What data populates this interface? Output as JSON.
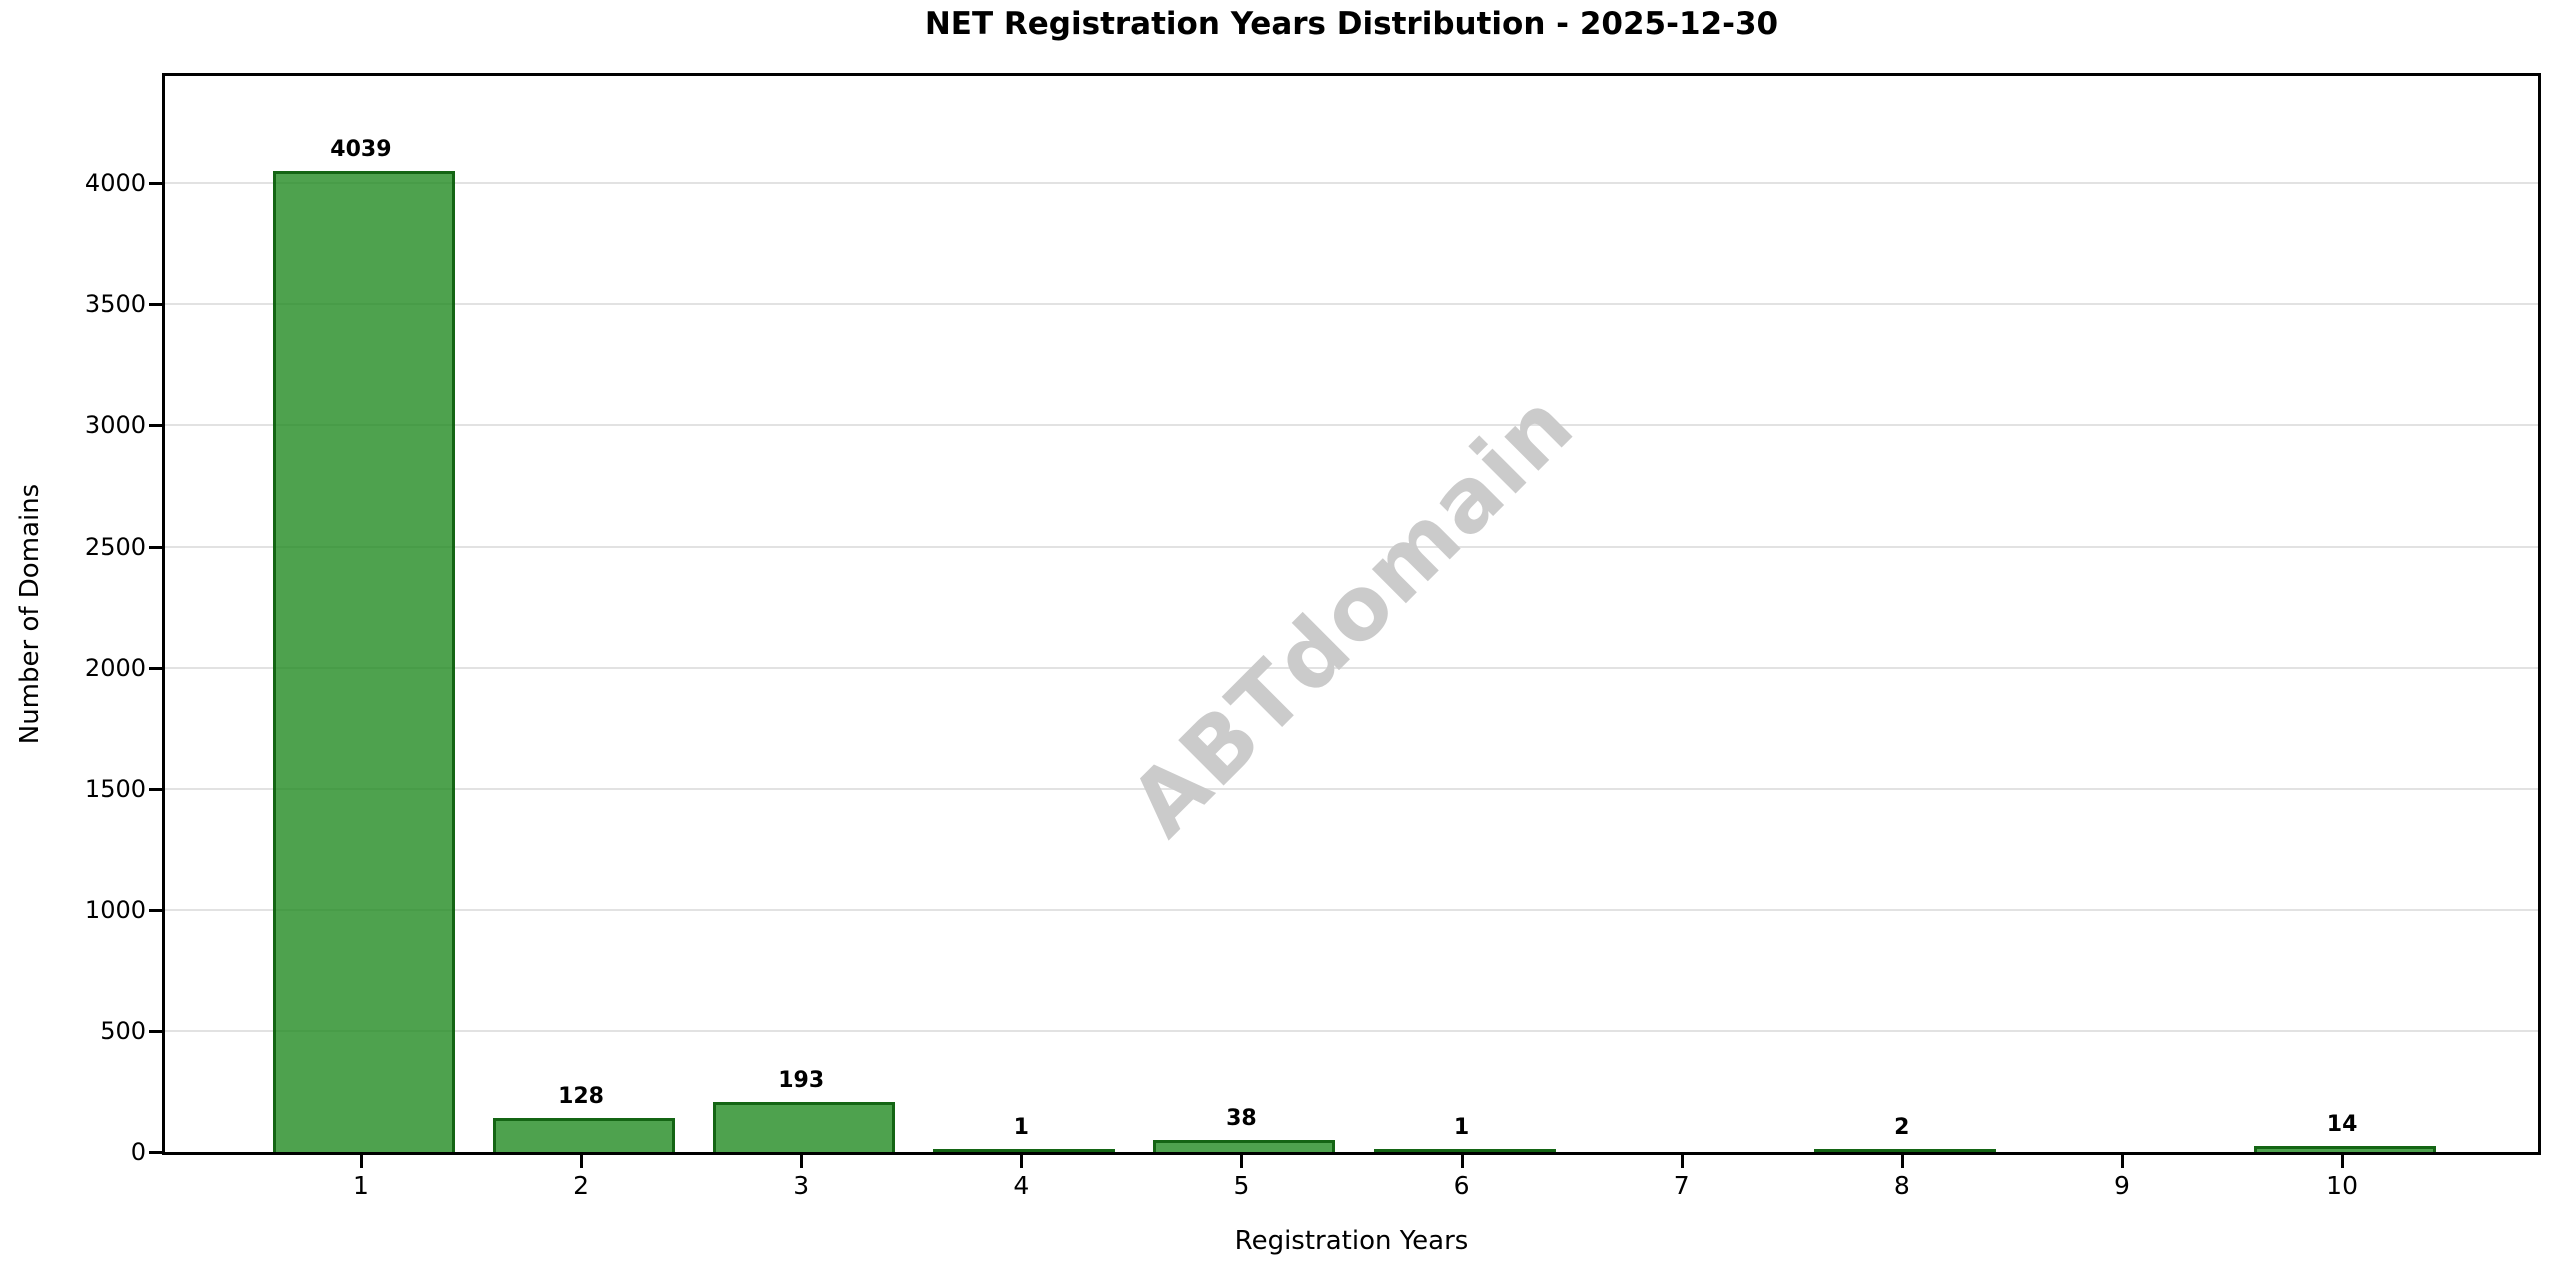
{
  "chart_data": {
    "type": "bar",
    "title": "NET Registration Years Distribution - 2025-12-30",
    "xlabel": "Registration Years",
    "ylabel": "Number of Domains",
    "categories": [
      1,
      2,
      3,
      4,
      5,
      6,
      7,
      8,
      9,
      10
    ],
    "values": [
      4039,
      128,
      193,
      1,
      38,
      1,
      0,
      2,
      0,
      14
    ],
    "bar_labels": [
      "4039",
      "128",
      "193",
      "1",
      "38",
      "1",
      "",
      "2",
      "",
      "14"
    ],
    "yticks": [
      0,
      500,
      1000,
      1500,
      2000,
      2500,
      3000,
      3500,
      4000
    ],
    "ylim": [
      0,
      4443
    ],
    "xlim": [
      0.11,
      10.89
    ],
    "bar_width": 0.8,
    "grid": "horizontal-only",
    "legend": null,
    "watermark": "ABTdomain",
    "colors": {
      "bar_fill": "rgba(34,139,34,0.8)",
      "bar_edge": "rgba(10,90,10,0.85)",
      "grid": "#e2e2e2",
      "watermark": "#cbcbcb",
      "text": "#000000",
      "background": "#ffffff"
    }
  }
}
